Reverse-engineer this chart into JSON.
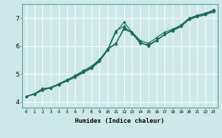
{
  "xlabel": "Humidex (Indice chaleur)",
  "bg_color": "#cce8e8",
  "grid_color": "#ffffff",
  "line_color": "#1a6b5a",
  "xlim": [
    -0.5,
    23.5
  ],
  "ylim": [
    3.8,
    7.5
  ],
  "xticks": [
    0,
    1,
    2,
    3,
    4,
    5,
    6,
    7,
    8,
    9,
    10,
    11,
    12,
    13,
    14,
    15,
    16,
    17,
    18,
    19,
    20,
    21,
    22,
    23
  ],
  "yticks": [
    4,
    5,
    6,
    7
  ],
  "series": [
    {
      "x": [
        0,
        1,
        2,
        3,
        4,
        5,
        6,
        7,
        8,
        9,
        10,
        11,
        12,
        13,
        14,
        15,
        16,
        17,
        18,
        19,
        20,
        21,
        22,
        23
      ],
      "y": [
        4.2,
        4.3,
        4.45,
        4.5,
        4.62,
        4.75,
        4.88,
        5.05,
        5.2,
        5.45,
        5.85,
        6.5,
        6.85,
        6.5,
        6.2,
        6.1,
        6.3,
        6.5,
        6.6,
        6.75,
        7.0,
        7.1,
        7.18,
        7.28
      ]
    },
    {
      "x": [
        0,
        1,
        2,
        3,
        4,
        5,
        6,
        7,
        8,
        9,
        10,
        11,
        12,
        13,
        14,
        15,
        16,
        17,
        18,
        19,
        20,
        21,
        22,
        23
      ],
      "y": [
        4.2,
        4.28,
        4.42,
        4.52,
        4.65,
        4.78,
        4.93,
        5.08,
        5.25,
        5.5,
        5.9,
        6.1,
        6.6,
        6.48,
        6.12,
        6.02,
        6.22,
        6.42,
        6.55,
        6.7,
        6.95,
        7.05,
        7.12,
        7.22
      ]
    },
    {
      "x": [
        0,
        1,
        2,
        3,
        4,
        5,
        6,
        7,
        8,
        9,
        10,
        11,
        12,
        13,
        14,
        15,
        16,
        17,
        18,
        19,
        20,
        21,
        22,
        23
      ],
      "y": [
        4.2,
        4.28,
        4.45,
        4.5,
        4.62,
        4.78,
        4.95,
        5.12,
        5.28,
        5.52,
        5.88,
        6.55,
        6.7,
        6.45,
        6.1,
        6.05,
        6.2,
        6.42,
        6.55,
        6.7,
        6.95,
        7.05,
        7.12,
        7.3
      ]
    },
    {
      "x": [
        0,
        1,
        2,
        3,
        4,
        5,
        6,
        7,
        8,
        9,
        10,
        11,
        12,
        13,
        14,
        15,
        16,
        17,
        18,
        19,
        20,
        21,
        22,
        23
      ],
      "y": [
        4.2,
        4.3,
        4.48,
        4.52,
        4.65,
        4.8,
        4.92,
        5.08,
        5.22,
        5.48,
        5.88,
        6.08,
        6.65,
        6.5,
        6.15,
        6.0,
        6.2,
        6.42,
        6.58,
        6.72,
        6.98,
        7.08,
        7.15,
        7.25
      ]
    }
  ]
}
